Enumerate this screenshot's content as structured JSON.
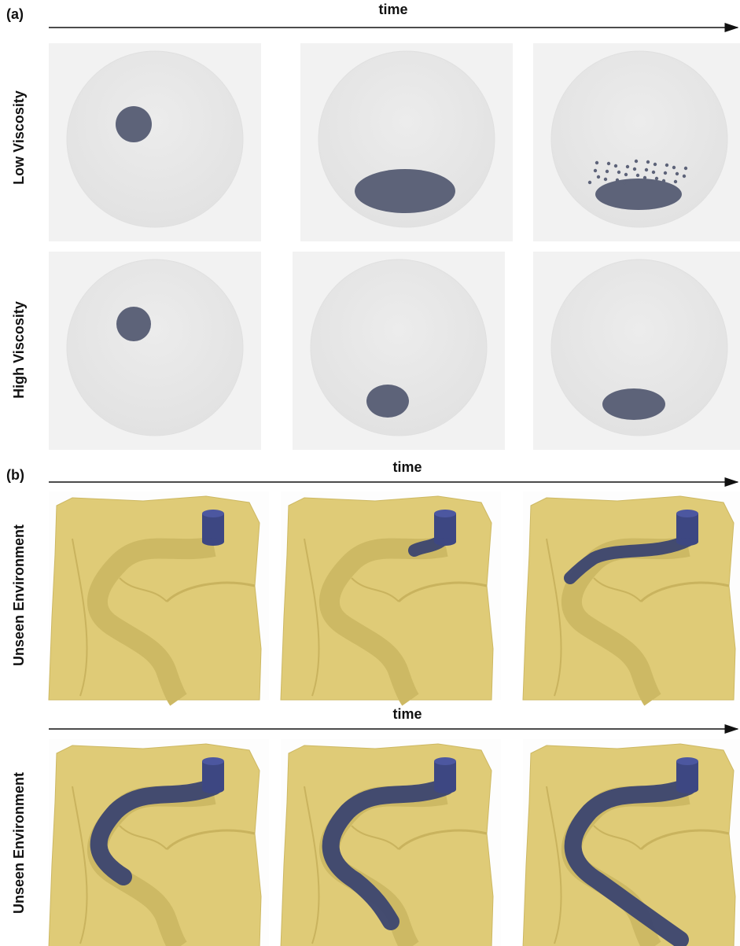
{
  "part_a": {
    "label": "(a)",
    "time": "time",
    "rows": [
      "Low Viscosity",
      "High Viscosity"
    ]
  },
  "part_b": {
    "label": "(b)",
    "time_1": "time",
    "time_2": "time",
    "rows": [
      "Unseen Environment",
      "Unseen Environment"
    ]
  }
}
